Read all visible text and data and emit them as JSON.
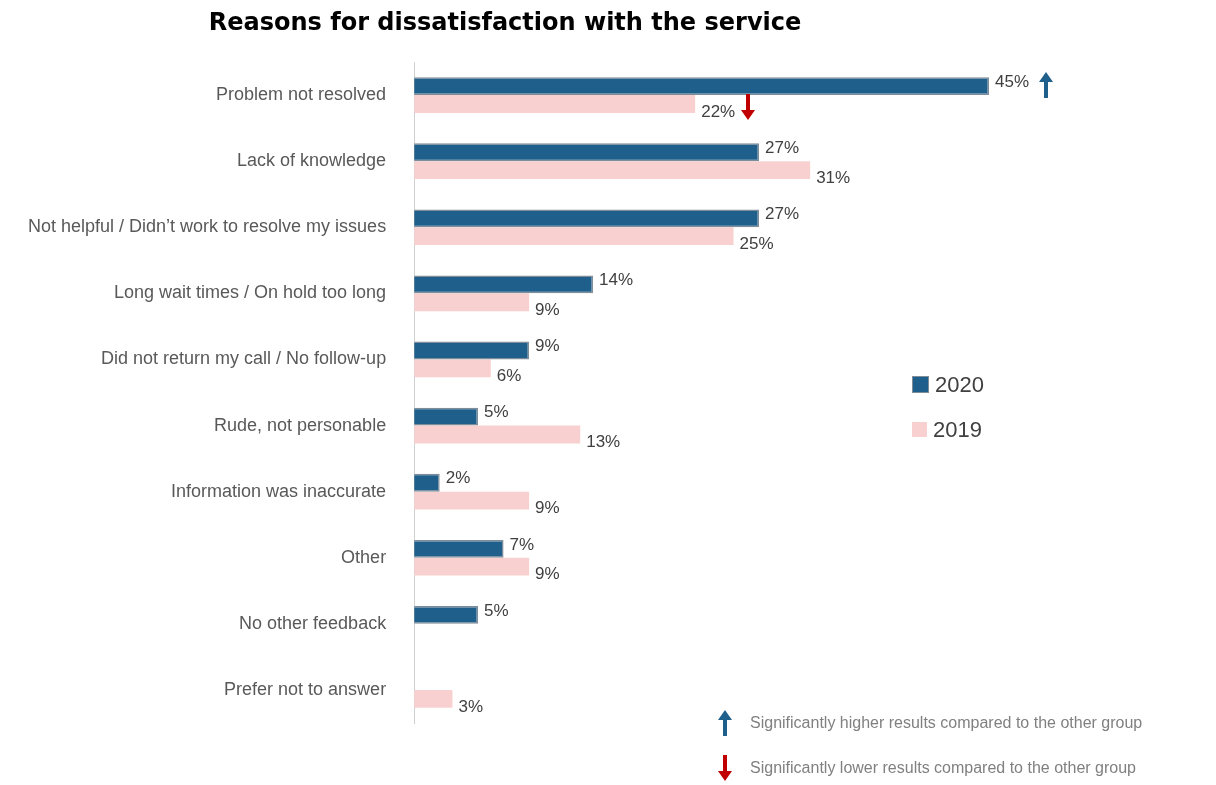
{
  "chart_data": {
    "type": "bar",
    "orientation": "horizontal",
    "title": "Reasons for dissatisfaction with the service",
    "categories": [
      "Problem not resolved",
      "Lack of knowledge",
      "Not helpful / Didn’t work to resolve my issues",
      "Long wait times / On hold too long",
      "Did not return my call / No follow-up",
      "Rude, not personable",
      "Information was inaccurate",
      "Other",
      "No other feedback",
      "Prefer not to answer"
    ],
    "series": [
      {
        "name": "2020",
        "color": "#1f5f8b",
        "values": [
          45,
          27,
          27,
          14,
          9,
          5,
          2,
          7,
          5,
          null
        ],
        "value_labels": [
          "45%",
          "27%",
          "27%",
          "14%",
          "9%",
          "5%",
          "2%",
          "7%",
          "5%",
          null
        ]
      },
      {
        "name": "2019",
        "color": "#f9d0d0",
        "values": [
          22,
          31,
          25,
          9,
          6,
          13,
          9,
          9,
          null,
          3
        ],
        "value_labels": [
          "22%",
          "31%",
          "25%",
          "9%",
          "6%",
          "13%",
          "9%",
          "9%",
          null,
          "3%"
        ]
      }
    ],
    "legend": "right",
    "grid": false,
    "tick_labels": "y",
    "annotations": [
      "Significantly higher results compared to the other group",
      "Significantly lower results compared to the other group"
    ]
  }
}
